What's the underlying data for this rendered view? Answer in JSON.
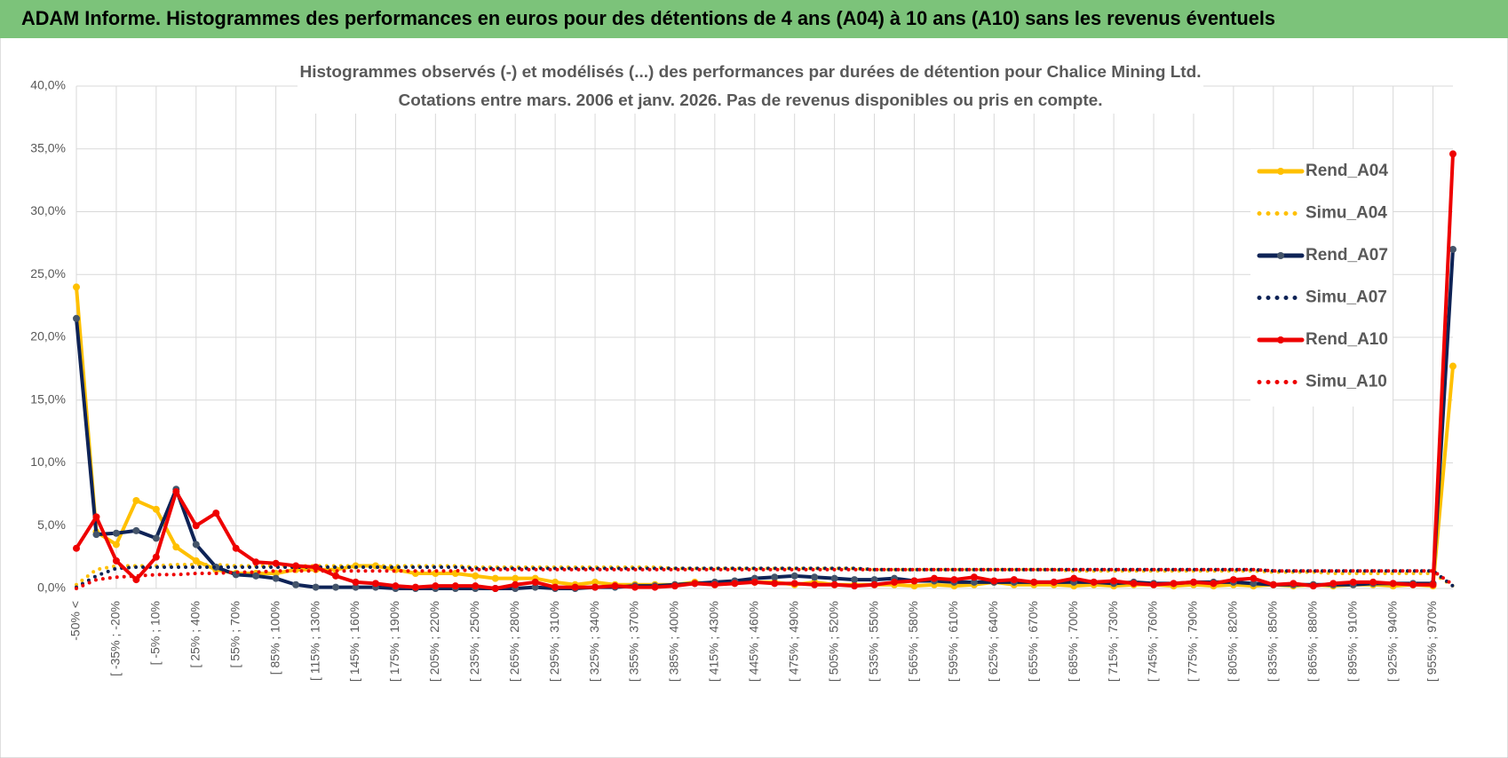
{
  "header": {
    "title": "ADAM Informe. Histogrammes des performances en euros pour des détentions de 4 ans (A04) à 10 ans (A10) sans les revenus éventuels"
  },
  "chart_data": {
    "type": "line",
    "title": "Histogrammes observés (-) et modélisés (...) des performances par durées de détention pour Chalice Mining Ltd.",
    "subtitle": "Cotations entre mars. 2006 et janv. 2026.  Pas de revenus disponibles ou pris en compte.",
    "categories": [
      "-50% <",
      null,
      "[ -35% ; -20%",
      null,
      "[ -5% ; 10%",
      null,
      "[ 25% ; 40%",
      null,
      "[ 55% ; 70%",
      null,
      "[ 85% ; 100%",
      null,
      "[ 115% ; 130%",
      null,
      "[ 145% ; 160%",
      null,
      "[ 175% ; 190%",
      null,
      "[ 205% ; 220%",
      null,
      "[ 235% ; 250%",
      null,
      "[ 265% ; 280%",
      null,
      "[ 295% ; 310%",
      null,
      "[ 325% ; 340%",
      null,
      "[ 355% ; 370%",
      null,
      "[ 385% ; 400%",
      null,
      "[ 415% ; 430%",
      null,
      "[ 445% ; 460%",
      null,
      "[ 475% ; 490%",
      null,
      "[ 505% ; 520%",
      null,
      "[ 535% ; 550%",
      null,
      "[ 565% ; 580%",
      null,
      "[ 595% ; 610%",
      null,
      "[ 625% ; 640%",
      null,
      "[ 655% ; 670%",
      null,
      "[ 685% ; 700%",
      null,
      "[ 715% ; 730%",
      null,
      "[ 745% ; 760%",
      null,
      "[ 775% ; 790%",
      null,
      "[ 805% ; 820%",
      null,
      "[ 835% ; 850%",
      null,
      "[ 865% ; 880%",
      null,
      "[ 895% ; 910%",
      null,
      "[ 925% ; 940%",
      null,
      "[ 955% ; 970%",
      null
    ],
    "series": [
      {
        "name": "Rend_A04",
        "color": "#ffc000",
        "style": "solid",
        "values": [
          24,
          4.5,
          3.5,
          7,
          6.3,
          3.3,
          2.2,
          1.5,
          1.2,
          1.2,
          1.2,
          1.5,
          1.5,
          1.5,
          1.8,
          1.8,
          1.5,
          1.2,
          1.2,
          1.2,
          1,
          0.8,
          0.8,
          0.8,
          0.5,
          0.3,
          0.5,
          0.3,
          0.3,
          0.3,
          0.3,
          0.5,
          0.3,
          0.5,
          0.5,
          0.5,
          0.3,
          0.5,
          0.3,
          0.3,
          0.3,
          0.3,
          0.2,
          0.3,
          0.2,
          0.3,
          0.5,
          0.3,
          0.3,
          0.3,
          0.2,
          0.3,
          0.2,
          0.3,
          0.3,
          0.2,
          0.3,
          0.2,
          0.3,
          0.2,
          0.3,
          0.2,
          0.3,
          0.2,
          0.3,
          0.3,
          0.2,
          0.3,
          0.2,
          17.7
        ]
      },
      {
        "name": "Simu_A04",
        "color": "#ffc000",
        "style": "dotted",
        "values": [
          0.3,
          1.5,
          1.8,
          1.8,
          1.8,
          1.9,
          1.9,
          1.9,
          1.8,
          1.8,
          1.8,
          1.8,
          1.8,
          1.8,
          1.8,
          1.8,
          1.8,
          1.8,
          1.8,
          1.8,
          1.7,
          1.7,
          1.7,
          1.7,
          1.7,
          1.7,
          1.7,
          1.7,
          1.7,
          1.7,
          1.6,
          1.6,
          1.6,
          1.6,
          1.6,
          1.6,
          1.6,
          1.6,
          1.6,
          1.6,
          1.5,
          1.5,
          1.5,
          1.5,
          1.5,
          1.5,
          1.5,
          1.5,
          1.5,
          1.5,
          1.4,
          1.4,
          1.4,
          1.4,
          1.4,
          1.4,
          1.4,
          1.4,
          1.4,
          1.4,
          1.3,
          1.3,
          1.3,
          1.2,
          1.2,
          1.2,
          1.2,
          1.2,
          1.2,
          0.2
        ]
      },
      {
        "name": "Rend_A07",
        "color": "#0e2356",
        "style": "solid",
        "values": [
          21.5,
          4.3,
          4.4,
          4.6,
          4,
          7.9,
          3.5,
          1.7,
          1.1,
          1,
          0.8,
          0.3,
          0.1,
          0.1,
          0.1,
          0.1,
          0,
          0,
          0,
          0,
          0,
          0,
          0,
          0.1,
          0,
          0,
          0.1,
          0.1,
          0.2,
          0.2,
          0.3,
          0.4,
          0.5,
          0.6,
          0.8,
          0.9,
          1,
          0.9,
          0.8,
          0.7,
          0.7,
          0.8,
          0.6,
          0.6,
          0.5,
          0.5,
          0.5,
          0.5,
          0.5,
          0.5,
          0.5,
          0.5,
          0.4,
          0.5,
          0.4,
          0.4,
          0.5,
          0.5,
          0.5,
          0.4,
          0.3,
          0.3,
          0.3,
          0.3,
          0.3,
          0.4,
          0.4,
          0.4,
          0.4,
          27
        ]
      },
      {
        "name": "Simu_A07",
        "color": "#0e2356",
        "style": "dotted",
        "values": [
          0.1,
          1,
          1.6,
          1.7,
          1.7,
          1.7,
          1.7,
          1.7,
          1.7,
          1.7,
          1.7,
          1.7,
          1.7,
          1.7,
          1.7,
          1.7,
          1.7,
          1.7,
          1.7,
          1.7,
          1.6,
          1.6,
          1.6,
          1.6,
          1.6,
          1.6,
          1.6,
          1.6,
          1.6,
          1.6,
          1.6,
          1.6,
          1.6,
          1.6,
          1.6,
          1.6,
          1.6,
          1.6,
          1.6,
          1.6,
          1.5,
          1.5,
          1.5,
          1.5,
          1.5,
          1.5,
          1.5,
          1.5,
          1.5,
          1.5,
          1.5,
          1.5,
          1.5,
          1.5,
          1.5,
          1.5,
          1.5,
          1.5,
          1.5,
          1.5,
          1.4,
          1.4,
          1.4,
          1.4,
          1.4,
          1.4,
          1.4,
          1.4,
          1.4,
          0.2
        ]
      },
      {
        "name": "Rend_A10",
        "color": "#ee0000",
        "style": "solid",
        "values": [
          3.2,
          5.7,
          2.2,
          0.7,
          2.5,
          7.7,
          5,
          6,
          3.2,
          2.1,
          2,
          1.8,
          1.7,
          1,
          0.5,
          0.4,
          0.2,
          0.1,
          0.2,
          0.2,
          0.2,
          0,
          0.3,
          0.5,
          0.1,
          0.1,
          0.1,
          0.2,
          0.1,
          0.1,
          0.2,
          0.4,
          0.3,
          0.4,
          0.5,
          0.4,
          0.4,
          0.3,
          0.3,
          0.2,
          0.3,
          0.5,
          0.6,
          0.8,
          0.7,
          0.9,
          0.6,
          0.7,
          0.5,
          0.5,
          0.8,
          0.5,
          0.6,
          0.4,
          0.3,
          0.4,
          0.5,
          0.4,
          0.7,
          0.8,
          0.3,
          0.4,
          0.2,
          0.4,
          0.5,
          0.5,
          0.4,
          0.3,
          0.3,
          34.6
        ]
      },
      {
        "name": "Simu_A10",
        "color": "#ee0000",
        "style": "dotted",
        "values": [
          0,
          0.7,
          0.9,
          1,
          1.1,
          1.1,
          1.2,
          1.2,
          1.3,
          1.3,
          1.4,
          1.4,
          1.4,
          1.4,
          1.4,
          1.4,
          1.4,
          1.4,
          1.4,
          1.4,
          1.5,
          1.5,
          1.5,
          1.5,
          1.5,
          1.5,
          1.5,
          1.5,
          1.5,
          1.5,
          1.5,
          1.5,
          1.5,
          1.5,
          1.5,
          1.5,
          1.5,
          1.5,
          1.5,
          1.5,
          1.5,
          1.5,
          1.5,
          1.5,
          1.5,
          1.5,
          1.5,
          1.5,
          1.5,
          1.5,
          1.5,
          1.5,
          1.5,
          1.5,
          1.5,
          1.5,
          1.5,
          1.5,
          1.5,
          1.5,
          1.4,
          1.4,
          1.4,
          1.4,
          1.4,
          1.4,
          1.4,
          1.4,
          1.4,
          0.3
        ]
      }
    ],
    "ylim": [
      0,
      40
    ],
    "yticks": [
      {
        "value": 0,
        "label": "0,0%"
      },
      {
        "value": 5,
        "label": "5,0%"
      },
      {
        "value": 10,
        "label": "10,0%"
      },
      {
        "value": 15,
        "label": "15,0%"
      },
      {
        "value": 20,
        "label": "20,0%"
      },
      {
        "value": 25,
        "label": "25,0%"
      },
      {
        "value": 30,
        "label": "30,0%"
      },
      {
        "value": 35,
        "label": "35,0%"
      },
      {
        "value": 40,
        "label": "40,0%"
      }
    ],
    "grid": true,
    "legend": "right"
  }
}
